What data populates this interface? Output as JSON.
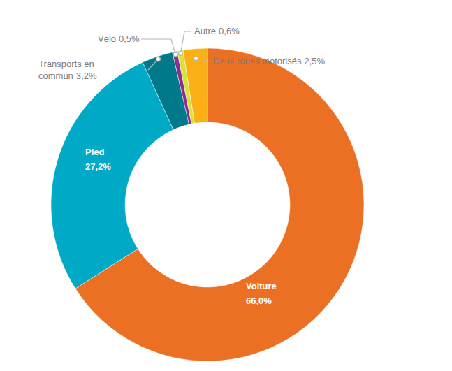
{
  "chart_data": {
    "type": "donut",
    "categories": [
      "Voiture",
      "Pied",
      "Transports en commun",
      "Vélo",
      "Autre",
      "Deux roues motorisés"
    ],
    "values": [
      66.0,
      27.2,
      3.2,
      0.5,
      0.6,
      2.5
    ],
    "value_labels": [
      "66,0%",
      "27,2%",
      "3,2%",
      "0,5%",
      "0,6%",
      "2,5%"
    ],
    "colors": [
      "#ec7024",
      "#00a9c6",
      "#00798b",
      "#8a2f91",
      "#d9e23c",
      "#fbb116"
    ],
    "data_labels": true
  }
}
